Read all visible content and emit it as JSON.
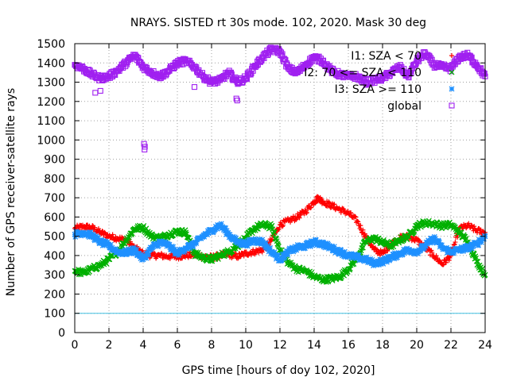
{
  "chart_data": {
    "type": "scatter",
    "title": "NRAYS. SISTED rt 30s mode. 102, 2020. Mask 30 deg",
    "xlabel": "GPS time [hours of doy 102, 2020]",
    "ylabel": "Number of GPS receiver-satellite rays",
    "xlim": [
      0,
      24
    ],
    "ylim": [
      0,
      1500
    ],
    "xticks": [
      0,
      2,
      4,
      6,
      8,
      10,
      12,
      14,
      16,
      18,
      20,
      22,
      24
    ],
    "yticks": [
      0,
      100,
      200,
      300,
      400,
      500,
      600,
      700,
      800,
      900,
      1000,
      1100,
      1200,
      1300,
      1400,
      1500
    ],
    "grid": true,
    "legend_position": "top-right",
    "reference_line": {
      "y": 100,
      "color": "#40c0e0"
    },
    "series": [
      {
        "name": "I1: SZA < 70",
        "marker": "+",
        "color": "#ff0000",
        "x": [
          0,
          0.5,
          1,
          1.5,
          2,
          2.5,
          3,
          3.5,
          4,
          4.5,
          5,
          5.5,
          6,
          6.5,
          7,
          7.5,
          8,
          8.5,
          9,
          9.5,
          10,
          10.5,
          11,
          11.5,
          12,
          12.5,
          13,
          13.5,
          14,
          14.25,
          14.5,
          15,
          15.5,
          16,
          16.5,
          17,
          17.5,
          18,
          18.5,
          19,
          19.5,
          20,
          20.5,
          21,
          21.5,
          22,
          22.5,
          23,
          23.5,
          24
        ],
        "values": [
          540,
          550,
          545,
          520,
          500,
          490,
          480,
          440,
          410,
          400,
          400,
          395,
          395,
          400,
          405,
          395,
          390,
          400,
          405,
          395,
          410,
          420,
          430,
          480,
          560,
          580,
          600,
          630,
          680,
          700,
          680,
          660,
          640,
          620,
          580,
          500,
          430,
          410,
          460,
          490,
          500,
          480,
          440,
          400,
          355,
          400,
          540,
          555,
          530,
          520
        ]
      },
      {
        "name": "I2: 70 <= SZA < 110",
        "marker": "x",
        "color": "#00b000",
        "x": [
          0,
          0.5,
          1,
          1.5,
          2,
          2.5,
          3,
          3.5,
          4,
          4.5,
          5,
          5.5,
          6,
          6.5,
          7,
          7.5,
          8,
          8.5,
          9,
          9.5,
          10,
          10.5,
          11,
          11.5,
          12,
          12.5,
          13,
          13.5,
          14,
          14.5,
          15,
          15.5,
          16,
          16.5,
          17,
          17.5,
          18,
          18.5,
          19,
          19.5,
          20,
          20.5,
          21,
          21.5,
          22,
          22.5,
          23,
          23.5,
          24
        ],
        "values": [
          320,
          310,
          330,
          350,
          380,
          420,
          480,
          540,
          545,
          500,
          490,
          510,
          525,
          520,
          410,
          390,
          380,
          400,
          420,
          450,
          490,
          540,
          560,
          550,
          430,
          360,
          330,
          320,
          290,
          275,
          280,
          290,
          330,
          390,
          470,
          490,
          470,
          450,
          480,
          500,
          555,
          570,
          565,
          555,
          560,
          520,
          470,
          370,
          300
        ]
      },
      {
        "name": "I3: SZA >= 110",
        "marker": "*",
        "color": "#1e90ff",
        "x": [
          0,
          0.5,
          1,
          1.5,
          2,
          2.5,
          3,
          3.5,
          4,
          4.5,
          5,
          5.5,
          6,
          6.5,
          7,
          7.5,
          8,
          8.5,
          9,
          9.5,
          10,
          10.5,
          11,
          11.5,
          12,
          12.5,
          13,
          13.5,
          14,
          14.5,
          15,
          15.5,
          16,
          16.5,
          17,
          17.5,
          18,
          18.5,
          19,
          19.5,
          20,
          20.5,
          21,
          21.5,
          22,
          22.5,
          23,
          23.5,
          24
        ],
        "values": [
          510,
          520,
          505,
          470,
          450,
          420,
          415,
          430,
          380,
          440,
          470,
          450,
          410,
          440,
          460,
          500,
          530,
          560,
          510,
          470,
          460,
          480,
          470,
          420,
          380,
          420,
          440,
          450,
          470,
          460,
          440,
          420,
          400,
          390,
          380,
          360,
          370,
          390,
          410,
          430,
          420,
          450,
          490,
          440,
          420,
          430,
          440,
          460,
          500
        ]
      },
      {
        "name": "global",
        "marker": "square",
        "color": "#a020f0",
        "x": [
          0,
          0.5,
          1,
          1.5,
          2,
          2.5,
          3,
          3.5,
          4,
          4.5,
          5,
          5.5,
          6,
          6.5,
          7,
          7.5,
          8,
          8.5,
          9,
          9.5,
          10,
          10.5,
          11,
          11.5,
          12,
          12.5,
          13,
          13.5,
          14,
          14.5,
          15,
          15.5,
          16,
          16.5,
          17,
          17.5,
          18,
          18.5,
          19,
          19.5,
          20,
          20.5,
          21,
          21.5,
          22,
          22.5,
          23,
          23.5,
          24
        ],
        "values": [
          1390,
          1370,
          1340,
          1320,
          1330,
          1360,
          1400,
          1440,
          1380,
          1350,
          1330,
          1360,
          1400,
          1410,
          1380,
          1330,
          1300,
          1310,
          1350,
          1300,
          1320,
          1380,
          1430,
          1470,
          1460,
          1370,
          1350,
          1390,
          1430,
          1410,
          1360,
          1340,
          1330,
          1330,
          1300,
          1310,
          1320,
          1350,
          1380,
          1330,
          1410,
          1450,
          1390,
          1380,
          1370,
          1430,
          1440,
          1390,
          1330
        ],
        "outliers": [
          {
            "x": 1.2,
            "y": 1245
          },
          {
            "x": 1.5,
            "y": 1255
          },
          {
            "x": 4.05,
            "y": 980
          },
          {
            "x": 4.1,
            "y": 965
          },
          {
            "x": 4.08,
            "y": 950
          },
          {
            "x": 7.0,
            "y": 1275
          },
          {
            "x": 9.5,
            "y": 1205
          },
          {
            "x": 9.45,
            "y": 1215
          }
        ]
      }
    ]
  }
}
